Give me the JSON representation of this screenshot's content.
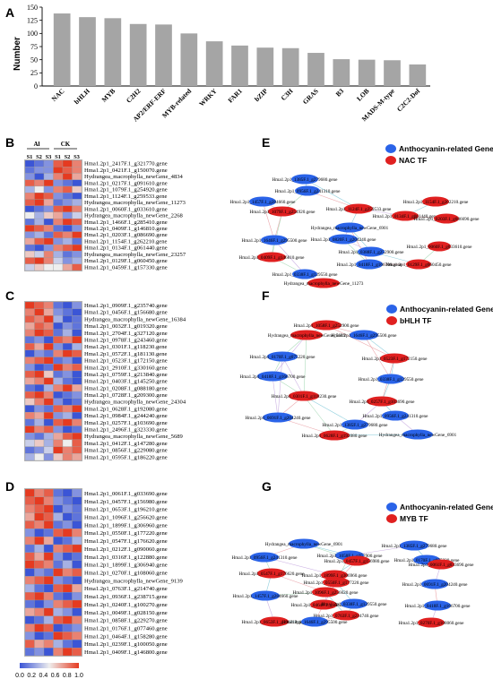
{
  "colors": {
    "bar": "#a5a5a5",
    "anthocyanin_node": "#2a63e8",
    "tf_node": "#e02020",
    "heat_low": "#3b55d6",
    "heat_high": "#e53a20"
  },
  "panels": {
    "A": "A",
    "B": "B",
    "C": "C",
    "D": "D",
    "E": "E",
    "F": "F",
    "G": "G"
  },
  "chart_data": {
    "type": "bar",
    "categories": [
      "NAC",
      "bHLH",
      "MYB",
      "C2H2",
      "AP2/ERF-ERF",
      "MYB-related",
      "WRKY",
      "FAR1",
      "bZIP",
      "C3H",
      "GRAS",
      "B3",
      "LOB",
      "MADS-M-type",
      "C2C2-Dof"
    ],
    "values": [
      138,
      131,
      129,
      118,
      117,
      100,
      85,
      77,
      73,
      72,
      63,
      51,
      50,
      49,
      41
    ],
    "ylabel": "Number",
    "ylim": [
      0,
      150
    ],
    "yticks": [
      "0",
      "25",
      "50",
      "75",
      "100",
      "125",
      "150"
    ],
    "grid": false
  },
  "heatmap": {
    "group_labels": [
      "Al",
      "CK"
    ],
    "sample_labels": [
      "S1",
      "S2",
      "S3",
      "S1",
      "S2",
      "S3"
    ],
    "colorbar_ticks": [
      "0.0",
      "0.2",
      "0.4",
      "0.6",
      "0.8",
      "1.0"
    ],
    "B": {
      "genes": [
        "Hma1.2p1_2417F.1_g321770.gene",
        "Hma1.2p1_0421F.1_g150070.gene",
        "Hydrangea_macrophylla_newGene_4834",
        "Hma1.2p1_0217F.1_g091610.gene",
        "Hma1.2p1_1079F.1_g254920.gene",
        "Hma1.2p1_1124F.1_g259533.gene",
        "Hydrangea_macrophylla_newGene_11273",
        "Hma1.2p1_0060F.1_g033610.gene",
        "Hydrangea_macrophylla_newGene_2268",
        "Hma1.2p1_1466F.1_g285410.gene",
        "Hma1.2p1_0409F.1_g146810.gene",
        "Hma1.2p1_0203F.1_g086690.gene",
        "Hma1.2p1_1154F.1_g262210.gene",
        "Hma1.2p1_0134F.1_g061440.gene",
        "Hydrangea_macrophylla_newGene_23257",
        "Hma1.2p1_0129F.1_g060450.gene",
        "Hma1.2p1_0459F.1_g157330.gene"
      ],
      "values": [
        [
          0.0,
          0.1,
          0.2,
          0.9,
          1.0,
          0.8
        ],
        [
          0.1,
          0.2,
          0.2,
          1.0,
          0.9,
          0.8
        ],
        [
          0.2,
          0.0,
          0.3,
          0.8,
          1.0,
          0.7
        ],
        [
          0.9,
          0.8,
          1.0,
          0.2,
          0.1,
          0.0
        ],
        [
          0.3,
          0.5,
          0.2,
          0.8,
          0.9,
          0.6
        ],
        [
          0.8,
          1.0,
          0.9,
          0.2,
          0.1,
          0.0
        ],
        [
          0.9,
          1.0,
          0.7,
          0.1,
          0.2,
          0.3
        ],
        [
          0.0,
          0.1,
          0.2,
          0.9,
          1.0,
          0.8
        ],
        [
          0.5,
          0.3,
          0.6,
          0.7,
          0.2,
          0.4
        ],
        [
          0.1,
          0.3,
          0.0,
          0.8,
          1.0,
          0.9
        ],
        [
          1.0,
          0.9,
          0.8,
          0.1,
          0.0,
          0.2
        ],
        [
          0.2,
          0.3,
          0.1,
          0.9,
          0.8,
          1.0
        ],
        [
          0.7,
          0.9,
          1.0,
          0.2,
          0.3,
          0.1
        ],
        [
          0.1,
          0.0,
          0.2,
          0.8,
          0.9,
          1.0
        ],
        [
          0.6,
          0.4,
          0.8,
          0.3,
          0.1,
          0.2
        ],
        [
          0.9,
          1.0,
          0.8,
          0.4,
          0.2,
          0.3
        ],
        [
          0.4,
          0.6,
          0.5,
          0.5,
          0.7,
          0.9
        ]
      ]
    },
    "C": {
      "genes": [
        "Hma1.2p1_0909F.1_g235740.gene",
        "Hma1.2p1_0456F.1_g156680.gene",
        "Hydrangea_macrophylla_newGene_16384",
        "Hma1.2p1_0032F.1_g019320.gene",
        "Hma1.2p1_2704F.1_g327120.gene",
        "Hma1.2p1_0978F.1_g243460.gene",
        "Hma1.2p1_0301F.1_g118230.gene",
        "Hma1.2p1_0572F.1_g181130.gene",
        "Hma1.2p1_0523F.1_g172150.gene",
        "Hma1.2p1_2910F.1_g330160.gene",
        "Hma1.2p1_0759F.1_g213840.gene",
        "Hma1.2p1_0403F.1_g145250.gene",
        "Hma1.2p1_0208F.1_g088180.gene",
        "Hma1.2p1_0728F.1_g209300.gene",
        "Hydrangea_macrophylla_newGene_24304",
        "Hma1.2p1_0628F.1_g192080.gene",
        "Hma1.2p1_0984F.1_g244240.gene",
        "Hma1.2p1_0257F.1_g103690.gene",
        "Hma1.2p1_2496F.1_g323330.gene",
        "Hydrangea_macrophylla_newGene_5689",
        "Hma1.2p1_0412F.1_g147280.gene",
        "Hma1.2p1_0856F.1_g229080.gene",
        "Hma1.2p1_0595F.1_g186220.gene"
      ],
      "values": [
        [
          1.0,
          0.9,
          0.8,
          0.1,
          0.0,
          0.2
        ],
        [
          0.8,
          1.0,
          0.7,
          0.2,
          0.1,
          0.0
        ],
        [
          0.9,
          0.8,
          1.0,
          0.3,
          0.0,
          0.1
        ],
        [
          0.7,
          0.9,
          0.8,
          0.0,
          0.2,
          0.1
        ],
        [
          0.8,
          1.0,
          0.9,
          0.1,
          0.3,
          0.0
        ],
        [
          0.1,
          0.2,
          0.0,
          0.9,
          0.8,
          1.0
        ],
        [
          0.9,
          0.7,
          1.0,
          0.2,
          0.0,
          0.3
        ],
        [
          0.0,
          0.2,
          0.1,
          0.8,
          1.0,
          0.9
        ],
        [
          0.8,
          0.9,
          1.0,
          0.1,
          0.2,
          0.0
        ],
        [
          0.2,
          0.0,
          0.1,
          1.0,
          0.8,
          0.9
        ],
        [
          0.9,
          1.0,
          0.6,
          0.1,
          0.2,
          0.0
        ],
        [
          0.7,
          0.8,
          1.0,
          0.3,
          0.1,
          0.0
        ],
        [
          0.1,
          0.0,
          0.3,
          0.8,
          1.0,
          0.7
        ],
        [
          0.9,
          1.0,
          0.8,
          0.0,
          0.1,
          0.2
        ],
        [
          0.6,
          0.8,
          1.0,
          0.2,
          0.0,
          0.1
        ],
        [
          0.0,
          0.2,
          0.1,
          0.9,
          0.8,
          1.0
        ],
        [
          0.8,
          0.7,
          1.0,
          0.2,
          0.3,
          0.0
        ],
        [
          0.1,
          0.3,
          0.0,
          0.9,
          1.0,
          0.8
        ],
        [
          1.0,
          0.8,
          0.9,
          0.2,
          0.0,
          0.1
        ],
        [
          0.2,
          0.1,
          0.3,
          0.7,
          0.9,
          1.0
        ],
        [
          0.4,
          0.6,
          0.3,
          0.8,
          0.5,
          0.9
        ],
        [
          0.1,
          0.2,
          0.4,
          1.0,
          0.8,
          0.9
        ],
        [
          0.3,
          0.5,
          0.2,
          0.6,
          0.8,
          0.7
        ]
      ]
    },
    "D": {
      "genes": [
        "Hma1.2p1_0061F.1_g033690.gene",
        "Hma1.2p1_0457F.1_g156980.gene",
        "Hma1.2p1_0653F.1_g196210.gene",
        "Hma1.2p1_1096F.1_g256620.gene",
        "Hma1.2p1_1899F.1_g306960.gene",
        "Hma1.2p1_0550F.1_g177220.gene",
        "Hma1.2p1_0547F.1_g176620.gene",
        "Hma1.2p1_0212F.1_g090060.gene",
        "Hma1.2p1_0316F.1_g122880.gene",
        "Hma1.2p1_1899F.1_g306940.gene",
        "Hma1.2p1_0270F.1_g108060.gene",
        "Hydrangea_macrophylla_newGene_9139",
        "Hma1.2p1_0763F.1_g214740.gene",
        "Hma1.2p1_0936F.1_g238715.gene",
        "Hma1.2p1_0240F.1_g100270.gene",
        "Hma1.2p1_0049F.1_g028150.gene",
        "Hma1.2p1_0858F.1_g229270.gene",
        "Hma1.2p1_0176F.1_g077460.gene",
        "Hma1.2p1_0464F.1_g158280.gene",
        "Hma1.2p1_0239F.1_g100050.gene",
        "Hma1.2p1_0409F.1_g146800.gene"
      ],
      "values": [
        [
          1.0,
          0.8,
          0.9,
          0.1,
          0.0,
          0.2
        ],
        [
          0.9,
          1.0,
          0.8,
          0.2,
          0.1,
          0.0
        ],
        [
          0.8,
          0.9,
          1.0,
          0.0,
          0.2,
          0.1
        ],
        [
          0.7,
          1.0,
          0.9,
          0.3,
          0.0,
          0.1
        ],
        [
          0.9,
          0.8,
          1.0,
          0.1,
          0.2,
          0.0
        ],
        [
          0.2,
          0.0,
          0.1,
          0.9,
          1.0,
          0.8
        ],
        [
          0.8,
          1.0,
          0.7,
          0.0,
          0.1,
          0.3
        ],
        [
          0.1,
          0.3,
          0.0,
          0.8,
          0.9,
          1.0
        ],
        [
          0.9,
          0.7,
          1.0,
          0.2,
          0.0,
          0.1
        ],
        [
          1.0,
          0.9,
          0.8,
          0.1,
          0.3,
          0.0
        ],
        [
          0.0,
          0.2,
          0.1,
          1.0,
          0.8,
          0.9
        ],
        [
          0.8,
          0.9,
          1.0,
          0.2,
          0.1,
          0.0
        ],
        [
          0.3,
          0.1,
          0.0,
          0.9,
          1.0,
          0.7
        ],
        [
          0.9,
          1.0,
          0.8,
          0.1,
          0.0,
          0.2
        ],
        [
          0.1,
          0.0,
          0.2,
          0.8,
          0.9,
          1.0
        ],
        [
          0.7,
          0.8,
          1.0,
          0.3,
          0.2,
          0.0
        ],
        [
          0.0,
          0.1,
          0.3,
          0.9,
          1.0,
          0.8
        ],
        [
          0.8,
          1.0,
          0.9,
          0.0,
          0.1,
          0.2
        ],
        [
          0.2,
          0.0,
          0.1,
          1.0,
          0.9,
          0.8
        ],
        [
          0.9,
          0.7,
          0.8,
          0.3,
          0.1,
          0.0
        ],
        [
          0.1,
          0.2,
          0.0,
          0.8,
          1.0,
          0.9
        ]
      ]
    }
  },
  "networks": {
    "E": {
      "legend": [
        "Anthocyanin-related Gene",
        "NAC TF"
      ],
      "nodes": [
        {
          "label": "Hma1.2p1_1385F.1_g279680.gene",
          "type": "a"
        },
        {
          "label": "Hma1.2p1_0956F.1_g241310.gene",
          "type": "a"
        },
        {
          "label": "Hma1.2p1_1457F.1_g284660.gene",
          "type": "a"
        },
        {
          "label": "Hma1.2p1_1124F.1_g259533.gene",
          "type": "t"
        },
        {
          "label": "Hma1.2p1_1079F.1_g254920.gene",
          "type": "t"
        },
        {
          "label": "Hma1.2p1_0134F.1_g061440.gene",
          "type": "t"
        },
        {
          "label": "Hma1.2p1_1154F.1_g262210.gene",
          "type": "t"
        },
        {
          "label": "Hma1.2p1_0203F.1_g086690.gene",
          "type": "t"
        },
        {
          "label": "Hydrangea_macrophylla_newGene_6901",
          "type": "a"
        },
        {
          "label": "Hma1.2p1_1646F.1_g295500.gene",
          "type": "a"
        },
        {
          "label": "Hma1.2p1_0820F.1_g204240.gene",
          "type": "a"
        },
        {
          "label": "Hma1.2p1_0409F.1_g146810.gene",
          "type": "t"
        },
        {
          "label": "Hma1.2p1_0338F.1_g129550.gene",
          "type": "a"
        },
        {
          "label": "Hma1.2p1_0388F.1_g252900.gene",
          "type": "a"
        },
        {
          "label": "Hma1.2p1_0418F.1_g166700.gene",
          "type": "a"
        },
        {
          "label": "Hma1.2p1_0129F.1_g060450.gene",
          "type": "t"
        },
        {
          "label": "Hma1.2p1_0060F.1_g033610.gene",
          "type": "t"
        },
        {
          "label": "Hydrangea_macrophylla_newGene_11273",
          "type": "t"
        }
      ]
    },
    "F": {
      "legend": [
        "Anthocyanin-related Gene",
        "bHLH TF"
      ],
      "nodes": [
        {
          "label": "Hma1.2p1_1058F.1_g252900.gene",
          "type": "t"
        },
        {
          "label": "Hydrangea_macrophylla_newGene_5689",
          "type": "t"
        },
        {
          "label": "Hma1.2p1_1646F.1_g295500.gene",
          "type": "a"
        },
        {
          "label": "Hma1.2p1_0170F.1_g075220.gene",
          "type": "a"
        },
        {
          "label": "Hma1.2p1_0523F.1_g172150.gene",
          "type": "t"
        },
        {
          "label": "Hma1.2p1_0418F.1_g166700.gene",
          "type": "a"
        },
        {
          "label": "Hma1.2p1_0338F.1_g129550.gene",
          "type": "a"
        },
        {
          "label": "Hma1.2p1_0301F.1_g118230.gene",
          "type": "t"
        },
        {
          "label": "Hma1.2p1_0257F.1_g103690.gene",
          "type": "t"
        },
        {
          "label": "Hma1.2p1_0691F.1_g204240.gene",
          "type": "a"
        },
        {
          "label": "Hma1.2p1_1385F.1_g279680.gene",
          "type": "a"
        },
        {
          "label": "Hma1.2p1_0956F.1_g241310.gene",
          "type": "a"
        },
        {
          "label": "Hma1.2p1_0628F.1_g192080.gene",
          "type": "t"
        },
        {
          "label": "Hydrangea_macrophylla_newGene_6901",
          "type": "a"
        }
      ]
    },
    "G": {
      "legend": [
        "Anthocyanin-related Gene",
        "MYB TF"
      ],
      "nodes": [
        {
          "label": "Hydrangea_macrophylla_newGene_6901",
          "type": "a"
        },
        {
          "label": "Hma1.2p1_1385F.1_g279680.gene",
          "type": "a"
        },
        {
          "label": "Hma1.2p1_1058F.1_g252900.gene",
          "type": "a"
        },
        {
          "label": "Hma1.2p1_0956F.1_g241310.gene",
          "type": "a"
        },
        {
          "label": "Hma1.2p1_0457F.1_g156980.gene",
          "type": "t"
        },
        {
          "label": "Hma1.2p1_0170F.1_g075220.gene",
          "type": "a"
        },
        {
          "label": "Hma1.2p1_0061F.1_g033690.gene",
          "type": "t"
        },
        {
          "label": "Hma1.2p1_0547F.1_g176620.gene",
          "type": "t"
        },
        {
          "label": "Hma1.2p1_1899F.1_g306960.gene",
          "type": "t"
        },
        {
          "label": "Hma1.2p1_0550F.1_g177220.gene",
          "type": "t"
        },
        {
          "label": "Hma1.2p1_0691F.1_g204240.gene",
          "type": "a"
        },
        {
          "label": "Hma1.2p1_1457F.1_g284660.gene",
          "type": "a"
        },
        {
          "label": "Hma1.2p1_1096F.1_g256620.gene",
          "type": "t"
        },
        {
          "label": "Hma1.2p1_0464F.1_g158280.gene",
          "type": "t"
        },
        {
          "label": "Hma1.2p1_0338F.1_g129550.gene",
          "type": "a"
        },
        {
          "label": "Hma1.2p1_0418F.1_g166700.gene",
          "type": "a"
        },
        {
          "label": "Hma1.2p1_0653F.1_g196210.gene",
          "type": "t"
        },
        {
          "label": "Hma1.2p1_0763F.1_g214740.gene",
          "type": "t"
        },
        {
          "label": "Hma1.2p1_1646F.1_g295500.gene",
          "type": "a"
        },
        {
          "label": "Hma1.2p1_0270F.1_g108060.gene",
          "type": "t"
        }
      ]
    }
  }
}
